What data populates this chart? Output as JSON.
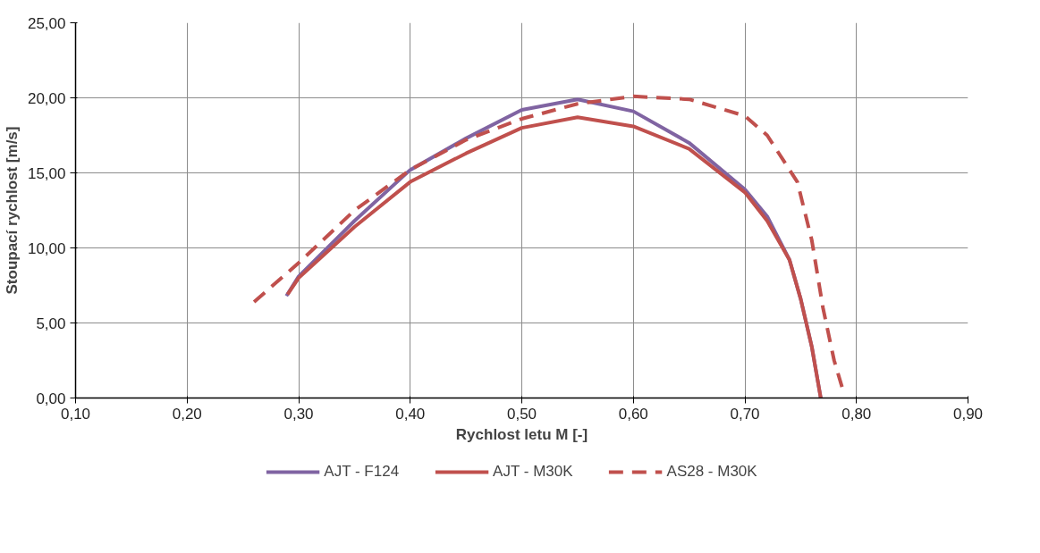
{
  "chart_data": {
    "type": "line",
    "xlabel": "Rychlost letu M [-]",
    "ylabel": "Stoupací rychlost [m/s]",
    "xlim": [
      0.1,
      0.9
    ],
    "ylim": [
      0,
      25
    ],
    "xticks": [
      {
        "value": 0.1,
        "label": "0,10"
      },
      {
        "value": 0.2,
        "label": "0,20"
      },
      {
        "value": 0.3,
        "label": "0,30"
      },
      {
        "value": 0.4,
        "label": "0,40"
      },
      {
        "value": 0.5,
        "label": "0,50"
      },
      {
        "value": 0.6,
        "label": "0,60"
      },
      {
        "value": 0.7,
        "label": "0,70"
      },
      {
        "value": 0.8,
        "label": "0,80"
      },
      {
        "value": 0.9,
        "label": "0,90"
      }
    ],
    "yticks": [
      {
        "value": 0,
        "label": "0,00"
      },
      {
        "value": 5,
        "label": "5,00"
      },
      {
        "value": 10,
        "label": "10,00"
      },
      {
        "value": 15,
        "label": "15,00"
      },
      {
        "value": 20,
        "label": "20,00"
      },
      {
        "value": 25,
        "label": "25,00"
      }
    ],
    "grid": true,
    "legend": "bottom",
    "marker": "none",
    "series": [
      {
        "name": "AJT - F124",
        "color": "#8064a2",
        "line_style": "solid",
        "x": [
          0.289,
          0.3,
          0.35,
          0.4,
          0.45,
          0.5,
          0.55,
          0.6,
          0.65,
          0.7,
          0.72,
          0.74,
          0.75,
          0.76,
          0.768
        ],
        "values": [
          6.8,
          8.1,
          11.8,
          15.2,
          17.3,
          19.2,
          19.9,
          19.1,
          17.0,
          13.9,
          12.1,
          9.2,
          6.6,
          3.4,
          0
        ]
      },
      {
        "name": "AJT - M30K",
        "color": "#c0504d",
        "line_style": "solid",
        "x": [
          0.29,
          0.3,
          0.35,
          0.4,
          0.45,
          0.5,
          0.55,
          0.6,
          0.65,
          0.7,
          0.72,
          0.74,
          0.75,
          0.76,
          0.768
        ],
        "values": [
          6.9,
          8.0,
          11.4,
          14.4,
          16.3,
          18.0,
          18.7,
          18.1,
          16.6,
          13.7,
          11.8,
          9.2,
          6.6,
          3.4,
          0
        ]
      },
      {
        "name": "AS28 - M30K",
        "color": "#c0504d",
        "line_style": "dashed",
        "x": [
          0.26,
          0.3,
          0.35,
          0.4,
          0.45,
          0.5,
          0.55,
          0.6,
          0.65,
          0.7,
          0.72,
          0.747,
          0.76,
          0.77,
          0.78,
          0.788
        ],
        "values": [
          6.4,
          9.0,
          12.5,
          15.2,
          17.2,
          18.6,
          19.6,
          20.1,
          19.9,
          18.8,
          17.5,
          14.4,
          10.5,
          6.0,
          2.5,
          0.5
        ]
      }
    ]
  }
}
